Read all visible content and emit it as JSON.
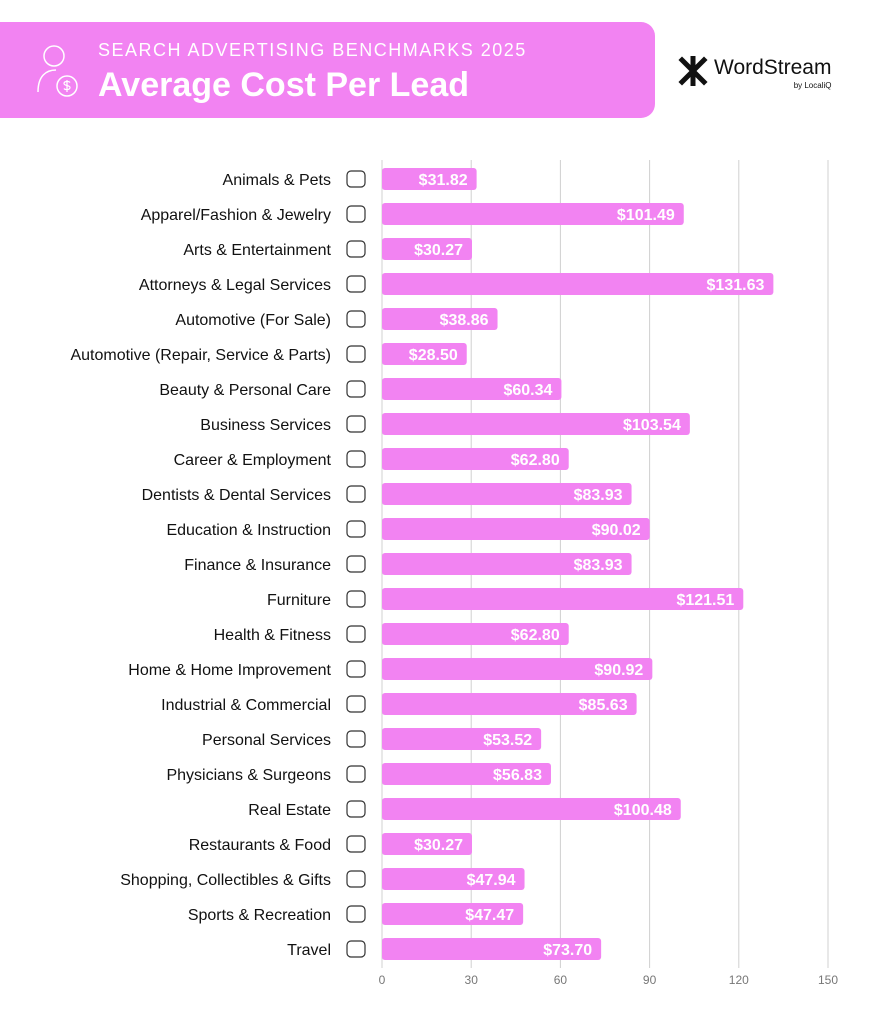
{
  "header": {
    "subtitle": "SEARCH ADVERTISING BENCHMARKS 2025",
    "title": "Average Cost Per Lead",
    "icon": "person-dollar-icon"
  },
  "logo": {
    "name": "WordStream",
    "sub": "by LocaliQ"
  },
  "colors": {
    "bar": "#f283f2",
    "header": "#f283f2",
    "grid": "#d0d0d0"
  },
  "chart_data": {
    "type": "bar",
    "orientation": "horizontal",
    "title": "Average Cost Per Lead",
    "xlabel": "",
    "ylabel": "",
    "xlim": [
      0,
      150
    ],
    "ticks": [
      0,
      30,
      60,
      90,
      120,
      150
    ],
    "grid": true,
    "categories": [
      "Animals & Pets",
      "Apparel/Fashion & Jewelry",
      "Arts & Entertainment",
      "Attorneys & Legal Services",
      "Automotive (For Sale)",
      "Automotive (Repair, Service & Parts)",
      "Beauty & Personal Care",
      "Business Services",
      "Career & Employment",
      "Dentists & Dental Services",
      "Education & Instruction",
      "Finance & Insurance",
      "Furniture",
      "Health & Fitness",
      "Home & Home Improvement",
      "Industrial & Commercial",
      "Personal Services",
      "Physicians & Surgeons",
      "Real Estate",
      "Restaurants & Food",
      "Shopping, Collectibles & Gifts",
      "Sports & Recreation",
      "Travel"
    ],
    "values": [
      31.82,
      101.49,
      30.27,
      131.63,
      38.86,
      28.5,
      60.34,
      103.54,
      62.8,
      83.93,
      90.02,
      83.93,
      121.51,
      62.8,
      90.92,
      85.63,
      53.52,
      56.83,
      100.48,
      30.27,
      47.94,
      47.47,
      73.7
    ],
    "labels": [
      "$31.82",
      "$101.49",
      "$30.27",
      "$131.63",
      "$38.86",
      "$28.50",
      "$60.34",
      "$103.54",
      "$62.80",
      "$83.93",
      "$90.02",
      "$83.93",
      "$121.51",
      "$62.80",
      "$90.92",
      "$85.63",
      "$53.52",
      "$56.83",
      "$100.48",
      "$30.27",
      "$47.94",
      "$47.47",
      "$73.70"
    ],
    "icons": [
      "paw-icon",
      "tshirt-icon",
      "picture-icon",
      "gavel-icon",
      "tag-icon",
      "car-icon",
      "comb-icon",
      "newspaper-icon",
      "briefcase-icon",
      "tooth-icon",
      "graduation-cap-icon",
      "piggy-bank-icon",
      "armchair-icon",
      "heart-icon",
      "house-icon",
      "factory-icon",
      "hand-heart-icon",
      "medical-cross-icon",
      "storefront-icon",
      "fork-knife-icon",
      "gift-bow-icon",
      "ball-icon",
      "airplane-icon"
    ]
  }
}
